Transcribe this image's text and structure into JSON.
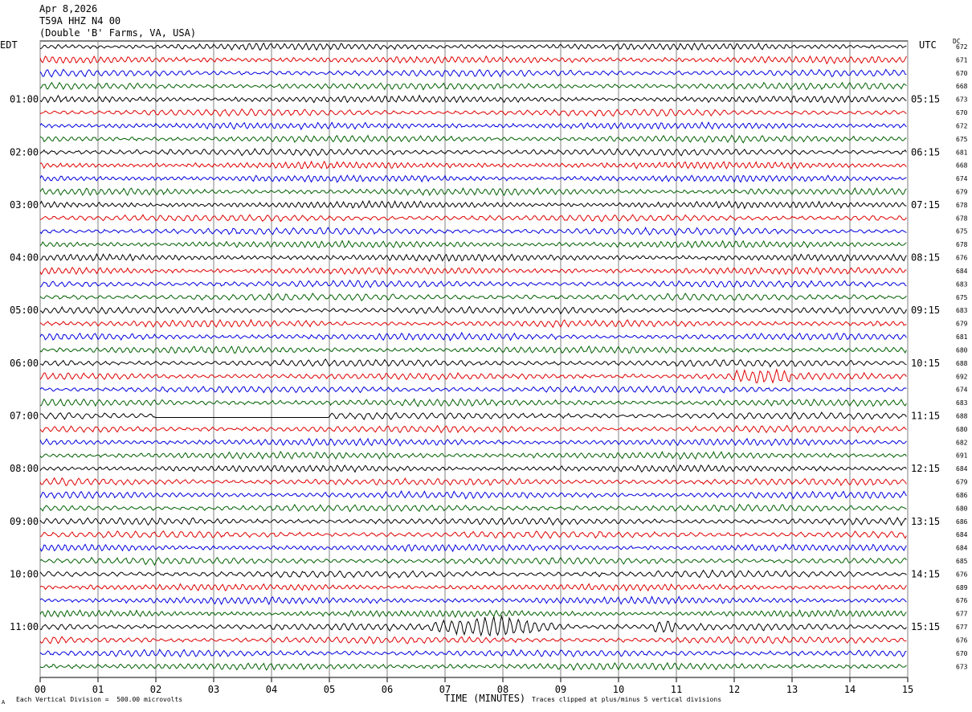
{
  "header": {
    "date": "Apr 8,2026",
    "station": "T59A HHZ N4 00",
    "location": "(Double 'B' Farms, VA, USA)"
  },
  "left_timezone": "EDT",
  "right_timezone": "UTC",
  "dc_label": "DC",
  "footer": {
    "scale": "Each Vertical Division =  500.00 microvolts",
    "xlabel": "TIME (MINUTES)",
    "clip": "Traces clipped at plus/minus 5 vertical divisions",
    "mark": "A"
  },
  "chart_data": {
    "type": "line",
    "title": "",
    "xlabel": "TIME (MINUTES)",
    "ylabel": "",
    "xlim": [
      0,
      15
    ],
    "x_ticks": [
      "00",
      "01",
      "02",
      "03",
      "04",
      "05",
      "06",
      "07",
      "08",
      "09",
      "10",
      "11",
      "12",
      "13",
      "14",
      "15"
    ],
    "grid": true,
    "trace_colors": [
      "#000000",
      "#e00000",
      "#0000e0",
      "#006000"
    ],
    "left_hour_labels": [
      "01:00",
      "02:00",
      "03:00",
      "04:00",
      "05:00",
      "06:00",
      "07:00",
      "08:00",
      "09:00",
      "10:00",
      "11:00"
    ],
    "right_hour_labels": [
      "05:15",
      "06:15",
      "07:15",
      "08:15",
      "09:15",
      "10:15",
      "11:15",
      "12:15",
      "13:15",
      "14:15",
      "15:15"
    ],
    "trace_dc_offsets": [
      672,
      671,
      670,
      668,
      673,
      670,
      672,
      675,
      681,
      668,
      674,
      679,
      678,
      678,
      675,
      678,
      676,
      684,
      683,
      675,
      683,
      679,
      681,
      680,
      688,
      692,
      674,
      683,
      688,
      680,
      682,
      691,
      684,
      679,
      686,
      680,
      686,
      684,
      684,
      685,
      676,
      689,
      676,
      677,
      677,
      676,
      670,
      673
    ],
    "events": [
      {
        "trace": 25,
        "x_start_min": 12.0,
        "x_end_min": 13.0,
        "amplitude": "elevated"
      },
      {
        "trace": 28,
        "x_start_min": 2.0,
        "x_end_min": 5.0,
        "amplitude": "flat gap"
      },
      {
        "trace": 44,
        "x_start_min": 6.7,
        "x_end_min": 9.4,
        "amplitude": "earthquake"
      },
      {
        "trace": 44,
        "x_start_min": 10.6,
        "x_end_min": 11.0,
        "amplitude": "elevated"
      }
    ]
  }
}
